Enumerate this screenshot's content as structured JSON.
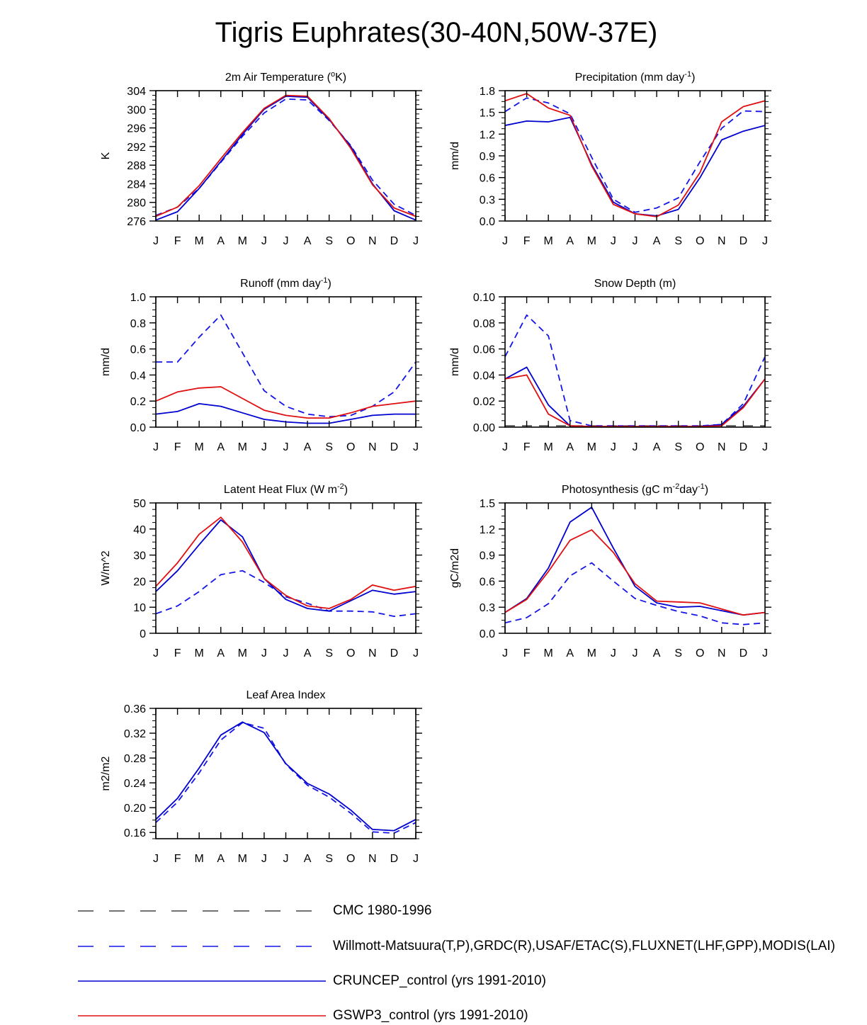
{
  "page": {
    "title": "Tigris Euphrates(30-40N,50W-37E)"
  },
  "colors": {
    "cmc": "#444444",
    "obs": "#1515e8",
    "cruncep": "#0000d0",
    "gswp3": "#e01010"
  },
  "legend": [
    {
      "key": "cmc",
      "label": "CMC 1980-1996",
      "style": "long-dash",
      "color": "#444444"
    },
    {
      "key": "obs",
      "label": "Willmott-Matsuura(T,P),GRDC(R),USAF/ETAC(S),FLUXNET(LHF,GPP),MODIS(LAI)",
      "style": "dash",
      "color": "#1515e8"
    },
    {
      "key": "cruncep",
      "label": "CRUNCEP_control (yrs 1991-2010)",
      "style": "solid",
      "color": "#0000d0"
    },
    {
      "key": "gswp3",
      "label": "GSWP3_control (yrs 1991-2010)",
      "style": "solid",
      "color": "#e01010"
    }
  ],
  "chart_data": [
    {
      "type": "line",
      "title": "2m Air Temperature (°K)",
      "title_parts": [
        "2m Air Temperature (",
        "o",
        "K)"
      ],
      "ylabel": "K",
      "categories": [
        "J",
        "F",
        "M",
        "A",
        "M",
        "J",
        "J",
        "A",
        "S",
        "O",
        "N",
        "D",
        "J"
      ],
      "ylim": [
        276,
        304
      ],
      "yticks": [
        276,
        280,
        284,
        288,
        292,
        296,
        300,
        304
      ],
      "ytick_labels": [
        "276",
        "280",
        "284",
        "288",
        "292",
        "296",
        "300",
        "304"
      ],
      "series": [
        {
          "name": "Willmott-Matsuura",
          "style": "dash",
          "values": [
            277.2,
            279.0,
            283.0,
            288.6,
            294.2,
            299.2,
            302.2,
            302.0,
            297.6,
            292.2,
            284.8,
            279.6,
            277.2
          ]
        },
        {
          "name": "CRUNCEP_control",
          "style": "solid",
          "values": [
            276.2,
            278.0,
            283.0,
            288.8,
            294.6,
            300.0,
            302.8,
            302.6,
            297.8,
            292.0,
            284.0,
            278.2,
            276.2
          ]
        },
        {
          "name": "GSWP3_control",
          "style": "solid-red",
          "values": [
            277.0,
            279.0,
            283.6,
            289.4,
            295.0,
            300.2,
            303.0,
            302.8,
            298.0,
            291.6,
            283.8,
            278.8,
            277.0
          ]
        }
      ]
    },
    {
      "type": "line",
      "title": "Precipitation (mm day-1)",
      "title_parts": [
        "Precipitation (mm day",
        "-1",
        ")"
      ],
      "ylabel": "mm/d",
      "categories": [
        "J",
        "F",
        "M",
        "A",
        "M",
        "J",
        "J",
        "A",
        "S",
        "O",
        "N",
        "D",
        "J"
      ],
      "ylim": [
        0,
        1.8
      ],
      "yticks": [
        0,
        0.3,
        0.6,
        0.9,
        1.2,
        1.5,
        1.8
      ],
      "ytick_labels": [
        "0.0",
        "0.3",
        "0.6",
        "0.9",
        "1.2",
        "1.5",
        "1.8"
      ],
      "series": [
        {
          "name": "Willmott-Matsuura",
          "style": "dash",
          "values": [
            1.51,
            1.7,
            1.63,
            1.48,
            0.88,
            0.3,
            0.12,
            0.18,
            0.32,
            0.82,
            1.28,
            1.52,
            1.51
          ]
        },
        {
          "name": "CRUNCEP_control",
          "style": "solid",
          "values": [
            1.32,
            1.38,
            1.37,
            1.43,
            0.78,
            0.26,
            0.1,
            0.07,
            0.16,
            0.6,
            1.12,
            1.24,
            1.32
          ]
        },
        {
          "name": "GSWP3_control",
          "style": "solid-red",
          "values": [
            1.66,
            1.76,
            1.56,
            1.46,
            0.76,
            0.23,
            0.1,
            0.06,
            0.22,
            0.67,
            1.37,
            1.58,
            1.66
          ]
        }
      ]
    },
    {
      "type": "line",
      "title": "Runoff (mm day-1)",
      "title_parts": [
        "Runoff (mm day",
        "-1",
        ")"
      ],
      "ylabel": "mm/d",
      "categories": [
        "J",
        "F",
        "M",
        "A",
        "M",
        "J",
        "J",
        "A",
        "S",
        "O",
        "N",
        "D",
        "J"
      ],
      "ylim": [
        0,
        1.0
      ],
      "yticks": [
        0,
        0.2,
        0.4,
        0.6,
        0.8,
        1.0
      ],
      "ytick_labels": [
        "0.0",
        "0.2",
        "0.4",
        "0.6",
        "0.8",
        "1.0"
      ],
      "series": [
        {
          "name": "GRDC",
          "style": "dash",
          "values": [
            0.5,
            0.5,
            0.69,
            0.86,
            0.57,
            0.28,
            0.16,
            0.1,
            0.08,
            0.09,
            0.16,
            0.27,
            0.5
          ]
        },
        {
          "name": "CRUNCEP_control",
          "style": "solid",
          "values": [
            0.1,
            0.12,
            0.18,
            0.16,
            0.11,
            0.06,
            0.04,
            0.03,
            0.03,
            0.06,
            0.09,
            0.1,
            0.1
          ]
        },
        {
          "name": "GSWP3_control",
          "style": "solid-red",
          "values": [
            0.2,
            0.27,
            0.3,
            0.31,
            0.22,
            0.13,
            0.09,
            0.07,
            0.07,
            0.11,
            0.16,
            0.18,
            0.2
          ]
        }
      ]
    },
    {
      "type": "line",
      "title": "Snow Depth (m)",
      "title_parts": [
        "Snow Depth (m)"
      ],
      "ylabel": "mm/d",
      "categories": [
        "J",
        "F",
        "M",
        "A",
        "M",
        "J",
        "J",
        "A",
        "S",
        "O",
        "N",
        "D",
        "J"
      ],
      "ylim": [
        0,
        0.1
      ],
      "yticks": [
        0,
        0.02,
        0.04,
        0.06,
        0.08,
        0.1
      ],
      "ytick_labels": [
        "0.00",
        "0.02",
        "0.04",
        "0.06",
        "0.08",
        "0.10"
      ],
      "series": [
        {
          "name": "CMC",
          "style": "long-dash-gray",
          "values": [
            0.001,
            0.001,
            0.001,
            0.001,
            0.001,
            0.001,
            0.001,
            0.001,
            0.001,
            0.001,
            0.001,
            0.001,
            0.001
          ]
        },
        {
          "name": "USAF/ETAC",
          "style": "dash",
          "values": [
            0.054,
            0.086,
            0.07,
            0.005,
            0.001,
            0.001,
            0.001,
            0.001,
            0.001,
            0.001,
            0.002,
            0.018,
            0.054
          ]
        },
        {
          "name": "CRUNCEP_control",
          "style": "solid",
          "values": [
            0.037,
            0.046,
            0.017,
            0.001,
            0.0005,
            0.0005,
            0.0005,
            0.0005,
            0.0005,
            0.0005,
            0.002,
            0.016,
            0.037
          ]
        },
        {
          "name": "GSWP3_control",
          "style": "solid-red",
          "values": [
            0.037,
            0.04,
            0.01,
            0.001,
            0.0005,
            0.0005,
            0.0005,
            0.0005,
            0.0005,
            0.0005,
            0.001,
            0.015,
            0.037
          ]
        }
      ]
    },
    {
      "type": "line",
      "title": "Latent Heat Flux (W m-2)",
      "title_parts": [
        "Latent Heat Flux (W m",
        "-2",
        ")"
      ],
      "ylabel": "W/m^2",
      "categories": [
        "J",
        "F",
        "M",
        "A",
        "M",
        "J",
        "J",
        "A",
        "S",
        "O",
        "N",
        "D",
        "J"
      ],
      "ylim": [
        0,
        50
      ],
      "yticks": [
        0,
        10,
        20,
        30,
        40,
        50
      ],
      "ytick_labels": [
        "0",
        "10",
        "20",
        "30",
        "40",
        "50"
      ],
      "series": [
        {
          "name": "FLUXNET",
          "style": "dash",
          "values": [
            7.5,
            10.5,
            16.0,
            22.5,
            24.0,
            19.5,
            14.0,
            11.5,
            8.5,
            8.5,
            8.2,
            6.5,
            7.5
          ]
        },
        {
          "name": "CRUNCEP_control",
          "style": "solid",
          "values": [
            16.0,
            24.0,
            34.0,
            43.5,
            37.0,
            21.0,
            13.0,
            9.5,
            8.5,
            12.5,
            16.5,
            15.0,
            16.0
          ]
        },
        {
          "name": "GSWP3_control",
          "style": "solid-red",
          "values": [
            18.0,
            27.0,
            38.0,
            44.5,
            35.0,
            21.0,
            14.5,
            10.5,
            9.5,
            13.0,
            18.5,
            16.5,
            18.0
          ]
        }
      ]
    },
    {
      "type": "line",
      "title": "Photosynthesis (gC m-2day-1)",
      "title_parts": [
        "Photosynthesis (gC m",
        "-2",
        "day",
        "-1",
        ")"
      ],
      "ylabel": "gC/m2d",
      "categories": [
        "J",
        "F",
        "M",
        "A",
        "M",
        "J",
        "J",
        "A",
        "S",
        "O",
        "N",
        "D",
        "J"
      ],
      "ylim": [
        0,
        1.5
      ],
      "yticks": [
        0,
        0.3,
        0.6,
        0.9,
        1.2,
        1.5
      ],
      "ytick_labels": [
        "0.0",
        "0.3",
        "0.6",
        "0.9",
        "1.2",
        "1.5"
      ],
      "series": [
        {
          "name": "FLUXNET",
          "style": "dash",
          "values": [
            0.12,
            0.18,
            0.34,
            0.66,
            0.81,
            0.6,
            0.4,
            0.32,
            0.25,
            0.2,
            0.12,
            0.1,
            0.12
          ]
        },
        {
          "name": "CRUNCEP_control",
          "style": "solid",
          "values": [
            0.24,
            0.4,
            0.75,
            1.28,
            1.45,
            0.98,
            0.54,
            0.35,
            0.3,
            0.31,
            0.26,
            0.21,
            0.24
          ]
        },
        {
          "name": "GSWP3_control",
          "style": "solid-red",
          "values": [
            0.24,
            0.39,
            0.71,
            1.07,
            1.19,
            0.93,
            0.57,
            0.37,
            0.36,
            0.35,
            0.28,
            0.21,
            0.24
          ]
        }
      ]
    },
    {
      "type": "line",
      "title": "Leaf Area Index",
      "title_parts": [
        "Leaf Area Index"
      ],
      "ylabel": "m2/m2",
      "categories": [
        "J",
        "F",
        "M",
        "A",
        "M",
        "J",
        "J",
        "A",
        "S",
        "O",
        "N",
        "D",
        "J"
      ],
      "ylim": [
        0.15,
        0.36
      ],
      "yticks": [
        0.16,
        0.2,
        0.24,
        0.28,
        0.32,
        0.36
      ],
      "ytick_labels": [
        "0.16",
        "0.20",
        "0.24",
        "0.28",
        "0.32",
        "0.36"
      ],
      "series": [
        {
          "name": "MODIS",
          "style": "dash",
          "values": [
            0.176,
            0.209,
            0.256,
            0.309,
            0.337,
            0.328,
            0.27,
            0.236,
            0.217,
            0.191,
            0.161,
            0.159,
            0.176
          ]
        },
        {
          "name": "CRUNCEP_control",
          "style": "solid",
          "values": [
            0.181,
            0.215,
            0.264,
            0.317,
            0.338,
            0.321,
            0.271,
            0.239,
            0.222,
            0.196,
            0.165,
            0.163,
            0.181
          ]
        }
      ]
    }
  ]
}
